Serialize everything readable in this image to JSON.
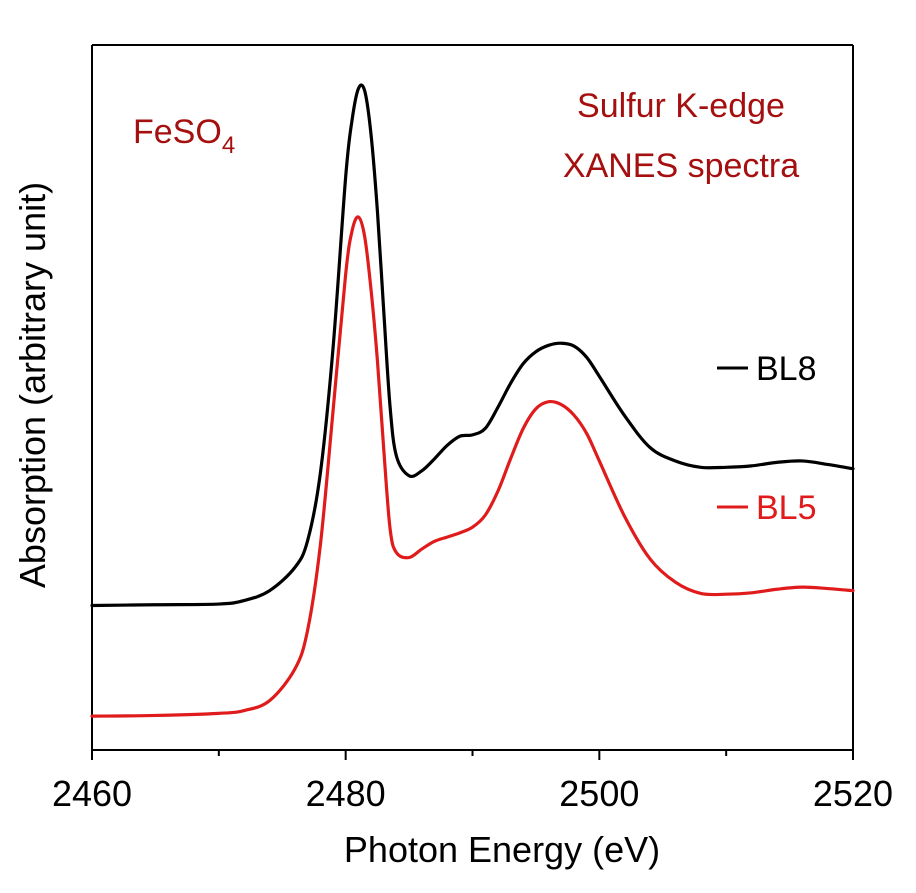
{
  "chart_data": {
    "type": "line",
    "title": "",
    "xlabel": "Photon Energy (eV)",
    "ylabel": "Absorption (arbitrary unit)",
    "xlim": [
      2460,
      2520
    ],
    "ylim": [
      0,
      1
    ],
    "xticks": [
      2460,
      2480,
      2500,
      2520
    ],
    "xtick_labels": [
      "2460",
      "2480",
      "2500",
      "2520"
    ],
    "yticks_shown": false,
    "grid": false,
    "annotations": {
      "sample": {
        "text": "FeSO",
        "subscript": "4",
        "color": "#a50f0f"
      },
      "method_line1": {
        "text": "Sulfur K-edge",
        "color": "#a50f0f"
      },
      "method_line2": {
        "text": "XANES spectra",
        "color": "#a50f0f"
      }
    },
    "legend": {
      "placement": "right",
      "entries": [
        "BL8",
        "BL5"
      ]
    },
    "series": [
      {
        "name": "BL8",
        "color": "#000000",
        "x": [
          2460,
          2465,
          2470,
          2472,
          2474,
          2476,
          2477,
          2478,
          2479,
          2480,
          2480.5,
          2481,
          2481.5,
          2482,
          2482.5,
          2483,
          2483.5,
          2484,
          2485,
          2486,
          2487,
          2488,
          2489,
          2490,
          2491,
          2492,
          2493,
          2494,
          2495,
          2496,
          2497,
          2498,
          2499,
          2500,
          2502,
          2504,
          2506,
          2508,
          2510,
          2512,
          2514,
          2516,
          2518,
          2520
        ],
        "y": [
          0.205,
          0.206,
          0.207,
          0.212,
          0.226,
          0.259,
          0.297,
          0.392,
          0.569,
          0.813,
          0.893,
          0.938,
          0.935,
          0.873,
          0.765,
          0.623,
          0.487,
          0.417,
          0.389,
          0.396,
          0.413,
          0.432,
          0.445,
          0.447,
          0.456,
          0.486,
          0.52,
          0.548,
          0.565,
          0.574,
          0.577,
          0.573,
          0.557,
          0.53,
          0.474,
          0.429,
          0.41,
          0.401,
          0.401,
          0.403,
          0.408,
          0.41,
          0.405,
          0.399
        ]
      },
      {
        "name": "BL5",
        "color": "#e01b1b",
        "x": [
          2460,
          2465,
          2470,
          2472,
          2474,
          2476,
          2477,
          2478,
          2479,
          2480,
          2480.5,
          2481,
          2481.5,
          2482,
          2482.5,
          2483,
          2483.5,
          2484,
          2485,
          2486,
          2487,
          2488,
          2489,
          2490,
          2491,
          2492,
          2493,
          2494,
          2495,
          2496,
          2497,
          2498,
          2499,
          2500,
          2502,
          2504,
          2506,
          2508,
          2510,
          2512,
          2514,
          2516,
          2518,
          2520
        ],
        "y": [
          0.048,
          0.049,
          0.052,
          0.056,
          0.07,
          0.115,
          0.17,
          0.29,
          0.48,
          0.675,
          0.736,
          0.756,
          0.728,
          0.653,
          0.553,
          0.427,
          0.314,
          0.28,
          0.273,
          0.285,
          0.296,
          0.302,
          0.308,
          0.316,
          0.333,
          0.367,
          0.413,
          0.456,
          0.484,
          0.494,
          0.49,
          0.475,
          0.449,
          0.41,
          0.331,
          0.271,
          0.238,
          0.222,
          0.221,
          0.223,
          0.228,
          0.231,
          0.229,
          0.226
        ]
      }
    ]
  }
}
